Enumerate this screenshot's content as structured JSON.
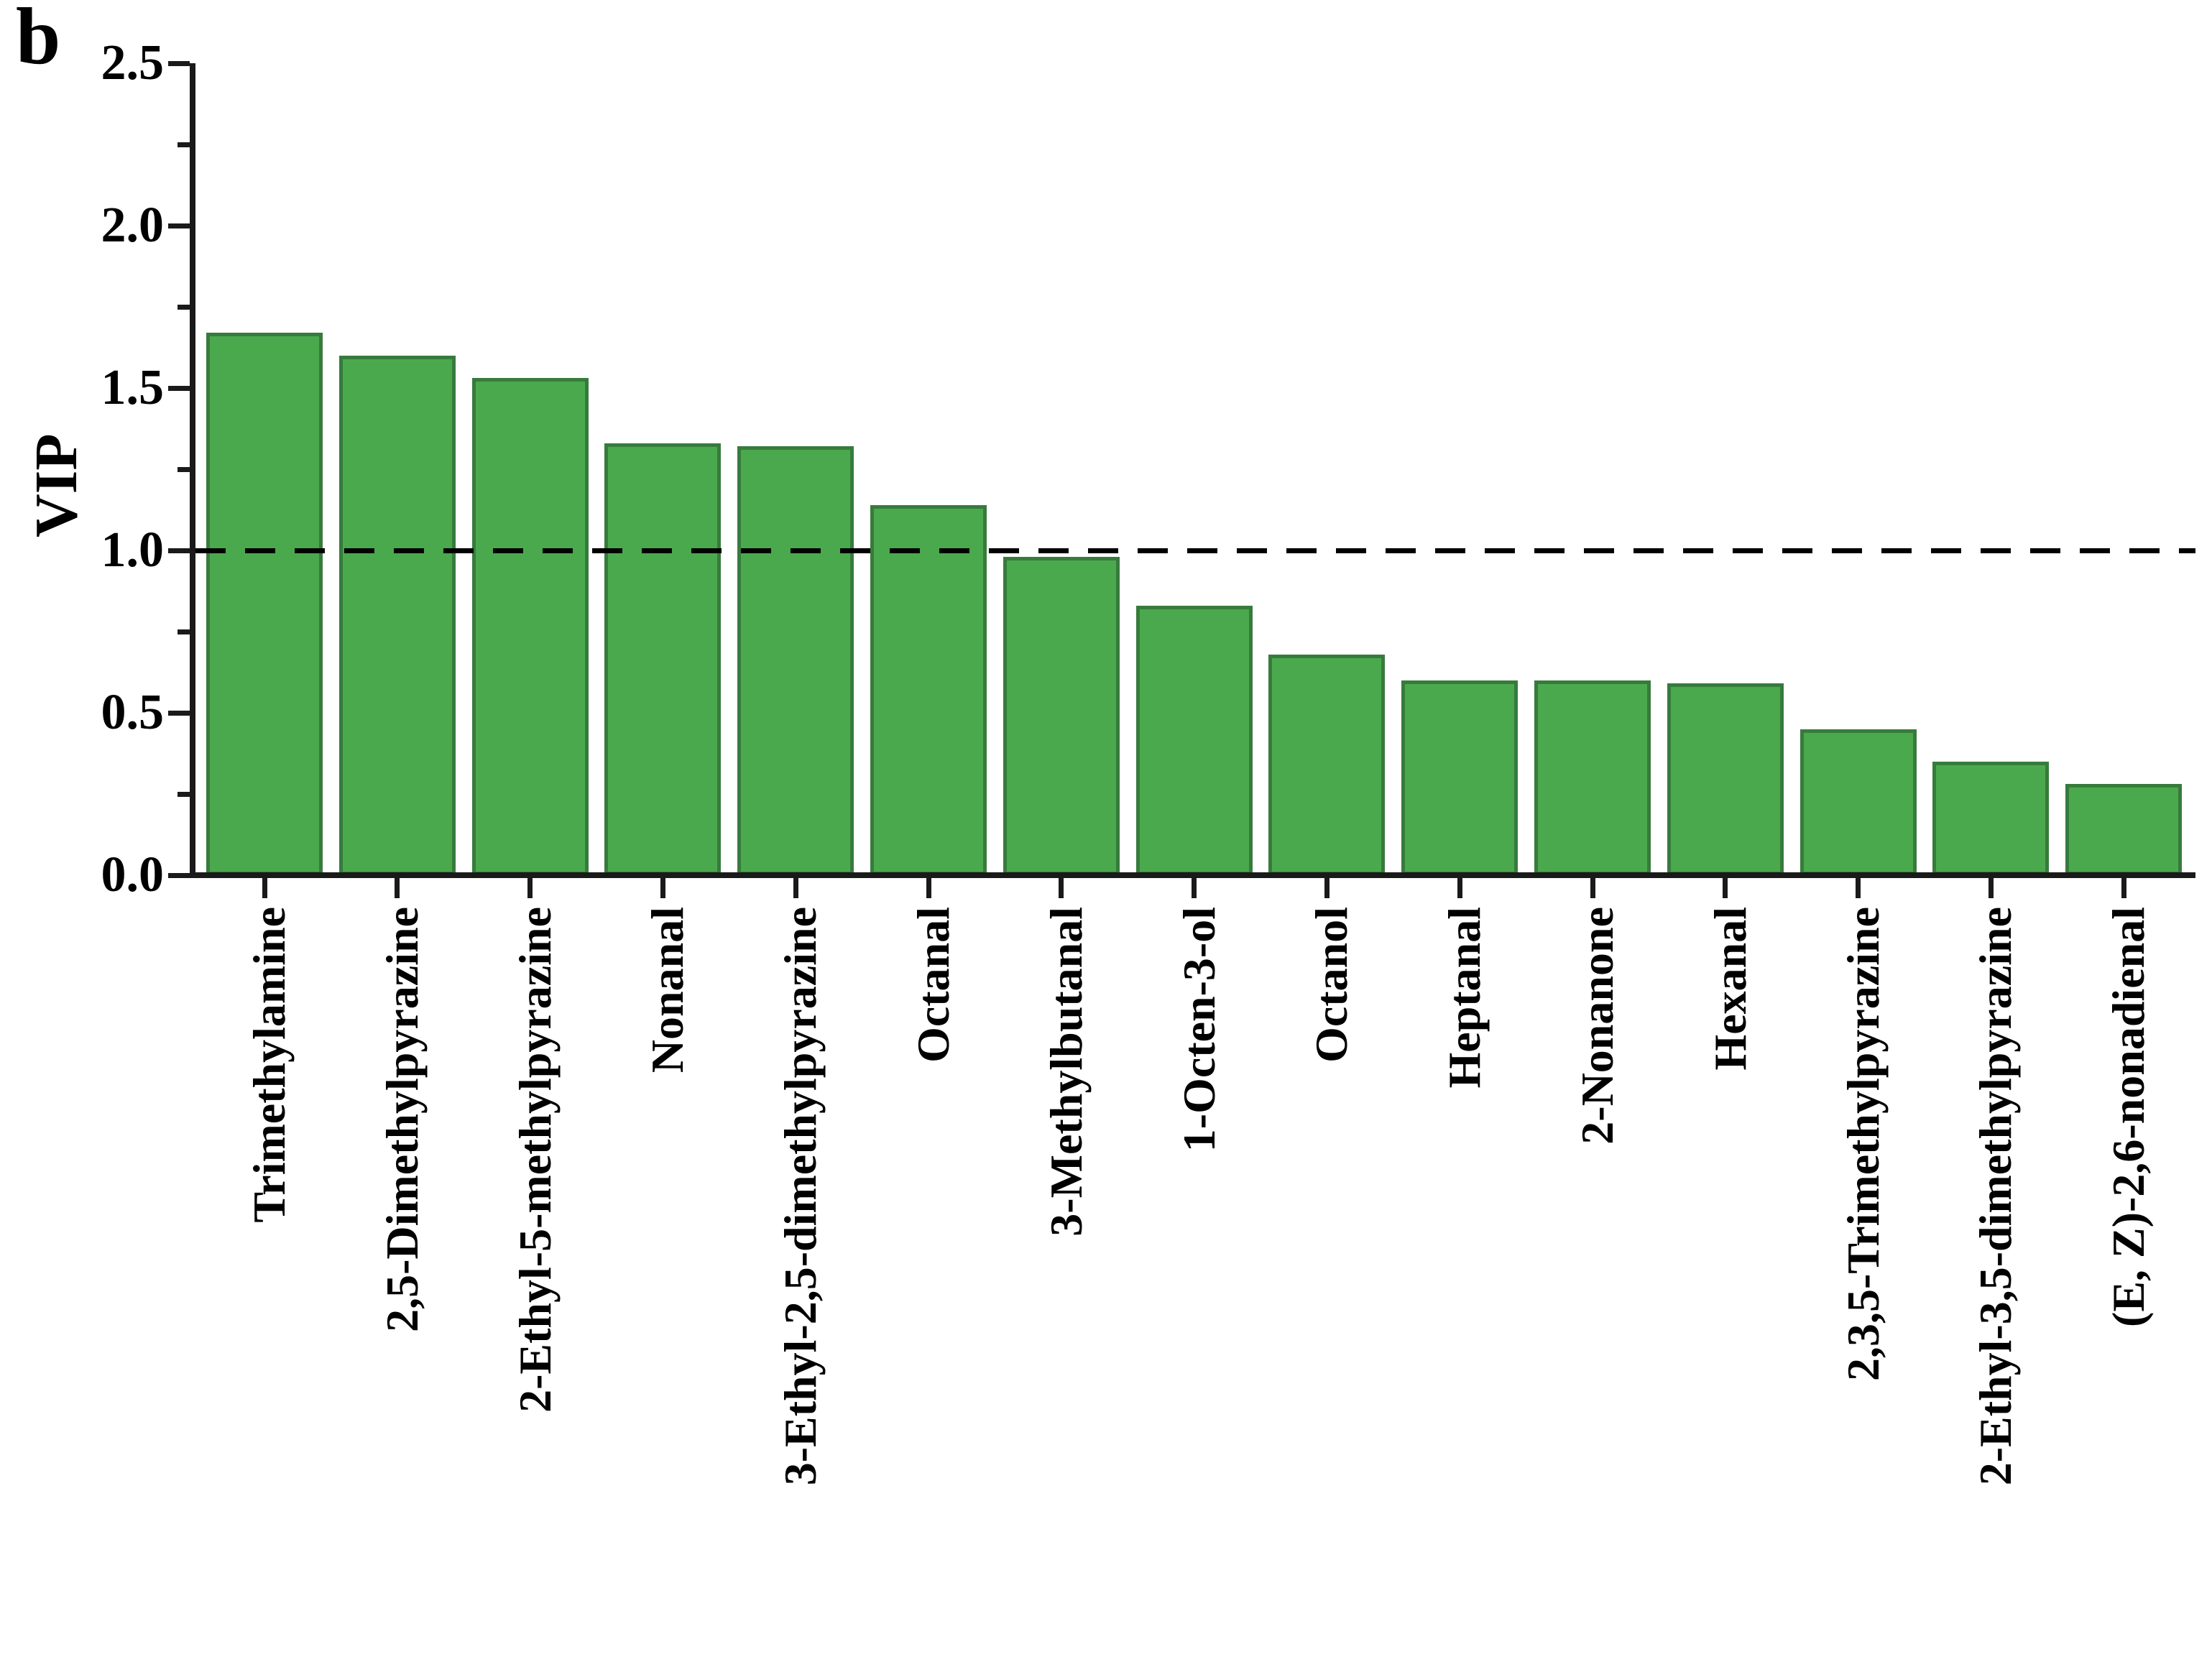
{
  "panel_label": "b",
  "colors": {
    "bar_fill": "#4AA94D",
    "bar_edge": "#377B3C",
    "axis": "#1A1A1A",
    "reference_line": "#000000",
    "text": "#000000"
  },
  "chart_data": {
    "type": "bar",
    "title": "",
    "xlabel": "",
    "ylabel": "VIP",
    "ylim": [
      0,
      2.5
    ],
    "yticks": [
      0,
      0.5,
      1,
      1.5,
      2,
      2.5
    ],
    "ytick_labels": [
      "0.0",
      "0.5",
      "1.0",
      "1.5",
      "2.0",
      "2.5"
    ],
    "minor_yticks": [
      0.25,
      0.75,
      1.25,
      1.75,
      2.25
    ],
    "reference_line_y": 1.0,
    "grid": false,
    "legend_position": "none",
    "categories": [
      "Trimethylamine",
      "2,5-Dimethylpyrazine",
      "2-Ethyl-5-methylpyrazine",
      "Nonanal",
      "3-Ethyl-2,5-dimethylpyrazine",
      "Octanal",
      "3-Methylbutanal",
      "1-Octen-3-ol",
      "Octanol",
      "Heptanal",
      "2-Nonanone",
      "Hexanal",
      "2,3,5-Trimethylpyrazine",
      "2-Ethyl-3,5-dimethylpyrazine",
      "(E, Z)-2,6-nonadienal"
    ],
    "values": [
      1.67,
      1.6,
      1.53,
      1.33,
      1.32,
      1.14,
      0.98,
      0.83,
      0.68,
      0.6,
      0.6,
      0.59,
      0.45,
      0.35,
      0.28
    ]
  }
}
